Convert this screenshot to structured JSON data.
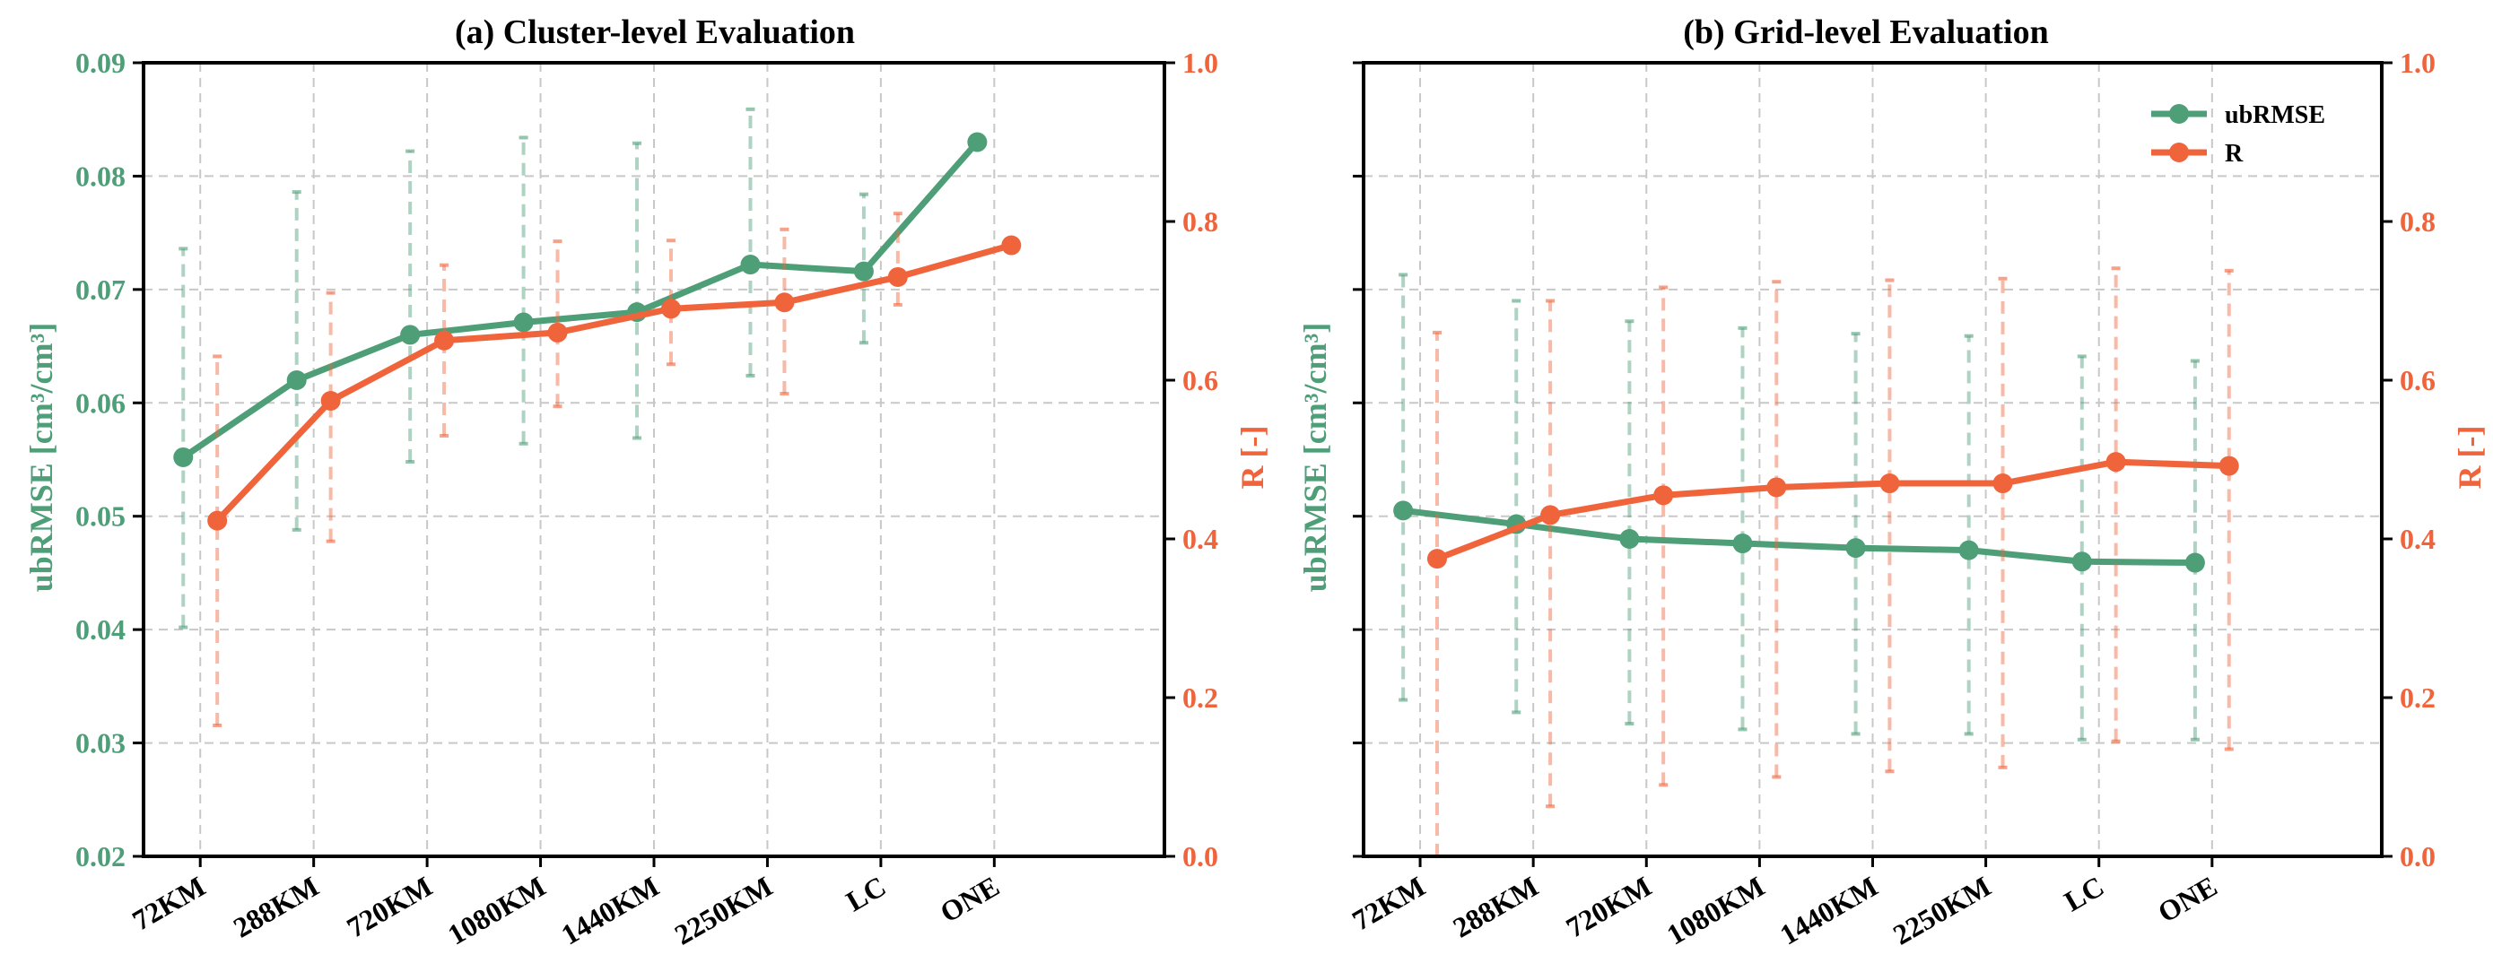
{
  "chart_data": [
    {
      "type": "line",
      "title": "(a) Cluster-level Evaluation",
      "categories": [
        "72KM",
        "288KM",
        "720KM",
        "1080KM",
        "1440KM",
        "2250KM",
        "LC",
        "ONE"
      ],
      "ylabel_left": "ubRMSE [cm³/cm³]",
      "ylabel_right": "R [-]",
      "ylim_left": [
        0.02,
        0.09
      ],
      "ylim_right": [
        0.0,
        1.0
      ],
      "yticks_left": [
        "0.02",
        "0.03",
        "0.04",
        "0.05",
        "0.06",
        "0.07",
        "0.08",
        "0.09"
      ],
      "yticks_right": [
        "0.0",
        "0.2",
        "0.4",
        "0.6",
        "0.8",
        "1.0"
      ],
      "grid": true,
      "legend": false,
      "series": [
        {
          "name": "ubRMSE",
          "axis": "left",
          "color": "#4e9e78",
          "offset": -0.15,
          "values": [
            0.0552,
            0.062,
            0.066,
            0.0671,
            0.068,
            0.0722,
            0.0716,
            0.083
          ],
          "err_low": [
            0.0402,
            0.0488,
            0.0548,
            0.0564,
            0.0569,
            0.0624,
            0.0653,
            null
          ],
          "err_high": [
            0.0736,
            0.0786,
            0.0822,
            0.0834,
            0.0829,
            0.0859,
            0.0784,
            null
          ]
        },
        {
          "name": "R",
          "axis": "right",
          "color": "#f0643c",
          "offset": 0.15,
          "values": [
            0.423,
            0.574,
            0.65,
            0.66,
            0.69,
            0.698,
            0.73,
            0.77
          ],
          "err_low": [
            0.165,
            0.397,
            0.53,
            0.567,
            0.62,
            0.583,
            0.695,
            null
          ],
          "err_high": [
            0.63,
            0.71,
            0.745,
            0.775,
            0.776,
            0.79,
            0.81,
            null
          ]
        }
      ]
    },
    {
      "type": "line",
      "title": "(b) Grid-level Evaluation",
      "categories": [
        "72KM",
        "288KM",
        "720KM",
        "1080KM",
        "1440KM",
        "2250KM",
        "LC",
        "ONE"
      ],
      "ylabel_left": "ubRMSE [cm³/cm³]",
      "ylabel_right": "R [-]",
      "ylim_left": [
        0.02,
        0.09
      ],
      "ylim_right": [
        0.0,
        1.0
      ],
      "yticks_left": [],
      "yticks_right": [
        "0.0",
        "0.2",
        "0.4",
        "0.6",
        "0.8",
        "1.0"
      ],
      "grid": true,
      "legend": true,
      "legend_location": "top-right",
      "series": [
        {
          "name": "ubRMSE",
          "axis": "left",
          "color": "#4e9e78",
          "offset": -0.15,
          "values": [
            0.0505,
            0.0493,
            0.048,
            0.0476,
            0.0472,
            0.047,
            0.046,
            0.0459
          ],
          "err_low": [
            0.0338,
            0.0327,
            0.0317,
            0.0312,
            0.0308,
            0.0308,
            0.0303,
            0.0303
          ],
          "err_high": [
            0.0713,
            0.069,
            0.0672,
            0.0666,
            0.0661,
            0.0659,
            0.0641,
            0.0637
          ]
        },
        {
          "name": "R",
          "axis": "right",
          "color": "#f0643c",
          "offset": 0.15,
          "values": [
            0.375,
            0.43,
            0.455,
            0.465,
            0.47,
            0.47,
            0.497,
            0.492
          ],
          "err_low": [
            0.0,
            0.063,
            0.09,
            0.1,
            0.107,
            0.112,
            0.145,
            0.135
          ],
          "err_high": [
            0.66,
            0.7,
            0.717,
            0.724,
            0.726,
            0.728,
            0.741,
            0.738
          ]
        }
      ]
    }
  ]
}
